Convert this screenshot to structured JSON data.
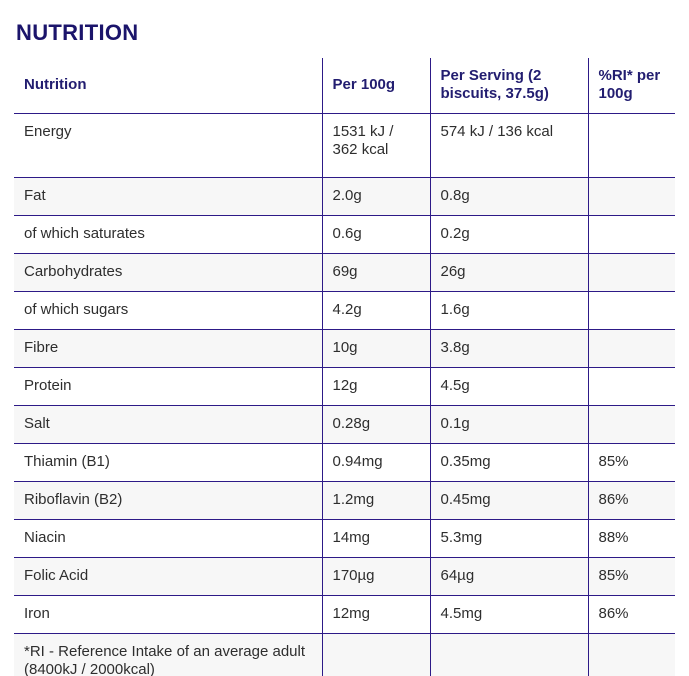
{
  "page": {
    "title": "NUTRITION"
  },
  "colors": {
    "grid_border": "#2d1a87",
    "title_text": "#1b146b",
    "header_text": "#221d70",
    "body_text": "#2e2e2e",
    "row_alt_background": "#f7f7f7"
  },
  "table": {
    "headers": [
      "Nutrition",
      "Per 100g",
      "Per Serving (2 biscuits, 37.5g)",
      "%RI* per 100g"
    ],
    "rows": [
      {
        "label": "Energy",
        "per_100g": "1531 kJ / 362 kcal",
        "per_serving": "574 kJ / 136 kcal",
        "ri": ""
      },
      {
        "label": "Fat",
        "per_100g": "2.0g",
        "per_serving": "0.8g",
        "ri": ""
      },
      {
        "label": "of which saturates",
        "per_100g": "0.6g",
        "per_serving": "0.2g",
        "ri": ""
      },
      {
        "label": "Carbohydrates",
        "per_100g": "69g",
        "per_serving": "26g",
        "ri": ""
      },
      {
        "label": "of which sugars",
        "per_100g": "4.2g",
        "per_serving": "1.6g",
        "ri": ""
      },
      {
        "label": "Fibre",
        "per_100g": "10g",
        "per_serving": "3.8g",
        "ri": ""
      },
      {
        "label": "Protein",
        "per_100g": "12g",
        "per_serving": "4.5g",
        "ri": ""
      },
      {
        "label": "Salt",
        "per_100g": "0.28g",
        "per_serving": "0.1g",
        "ri": ""
      },
      {
        "label": "Thiamin (B1)",
        "per_100g": "0.94mg",
        "per_serving": "0.35mg",
        "ri": "85%"
      },
      {
        "label": "Riboflavin (B2)",
        "per_100g": "1.2mg",
        "per_serving": "0.45mg",
        "ri": "86%"
      },
      {
        "label": "Niacin",
        "per_100g": "14mg",
        "per_serving": "5.3mg",
        "ri": "88%"
      },
      {
        "label": "Folic Acid",
        "per_100g": "170µg",
        "per_serving": "64µg",
        "ri": "85%"
      },
      {
        "label": "Iron",
        "per_100g": "12mg",
        "per_serving": "4.5mg",
        "ri": "86%"
      }
    ],
    "footnote": "*RI - Reference Intake of an average adult (8400kJ / 2000kcal)"
  }
}
